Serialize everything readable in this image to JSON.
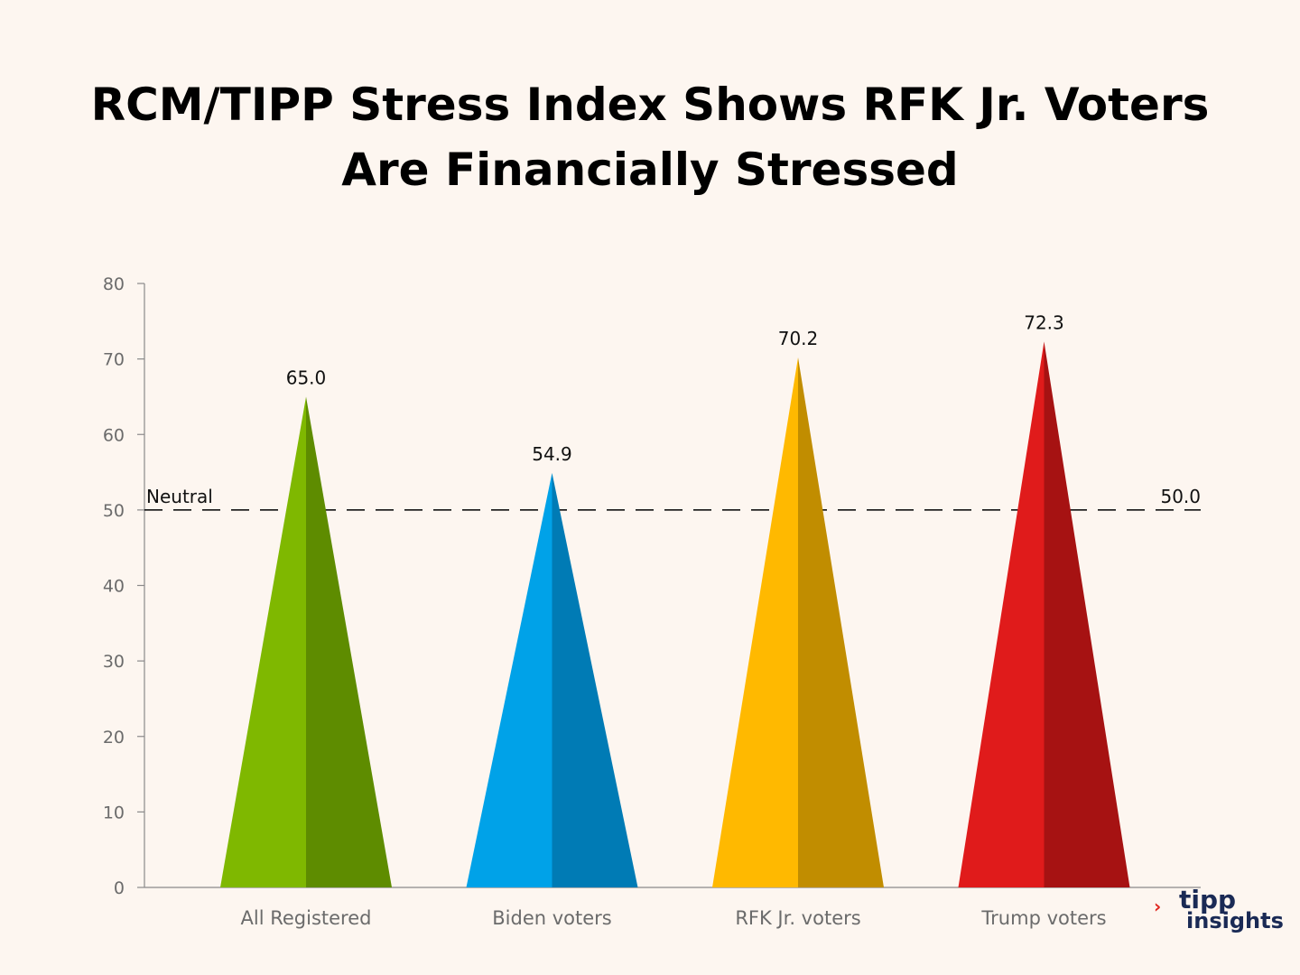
{
  "title_lines": [
    "RCM/TIPP Stress Index Shows RFK Jr. Voters",
    "Are Financially Stressed"
  ],
  "chart_data": {
    "type": "bar",
    "bar_shape": "triangle",
    "title": "RCM/TIPP Stress Index Shows RFK Jr. Voters Are Financially Stressed",
    "categories": [
      "All Registered",
      "Biden voters",
      "RFK Jr. voters",
      "Trump voters"
    ],
    "values": [
      65.0,
      54.9,
      70.2,
      72.3
    ],
    "value_labels": [
      "65.0",
      "54.9",
      "70.2",
      "72.3"
    ],
    "ylim": [
      0,
      80
    ],
    "yticks": [
      0,
      10,
      20,
      30,
      40,
      50,
      60,
      70,
      80
    ],
    "xlabel": "",
    "ylabel": "",
    "grid": false,
    "reference_line": {
      "value": 50.0,
      "label": "Neutral",
      "value_label": "50.0",
      "style": "dashed",
      "color": "#000000"
    },
    "colors": [
      {
        "light": "#7fb800",
        "dark": "#5e8c00"
      },
      {
        "light": "#00a2e8",
        "dark": "#007bb5"
      },
      {
        "light": "#ffb900",
        "dark": "#c18d00"
      },
      {
        "light": "#e01b1b",
        "dark": "#a61212"
      }
    ]
  },
  "logo": {
    "arrow": "›",
    "line1": "tipp",
    "line2": "insights"
  }
}
